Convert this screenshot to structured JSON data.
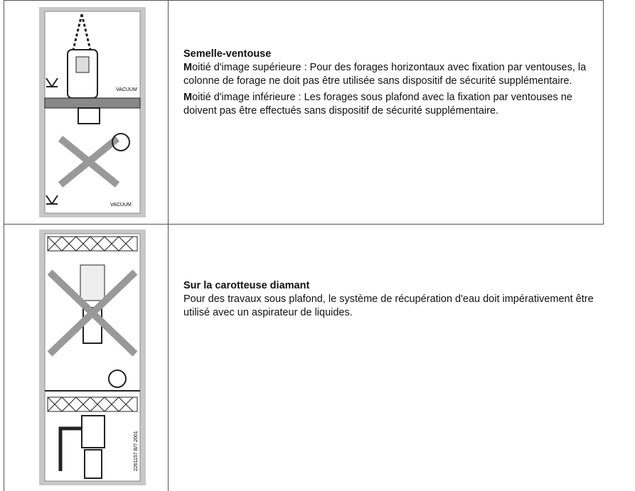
{
  "table": {
    "rows": [
      {
        "pictogram_labels": [
          "VACUUM",
          "VACUUM"
        ],
        "heading": "Semelle-ventouse",
        "paragraphs": [
          {
            "lead": "M",
            "text": "oitié d'image supérieure : Pour des forages horizontaux avec fixation par ventouses, la colonne de forage ne doit pas être utilisée sans dispositif de sécurité supplémentaire."
          },
          {
            "lead": "M",
            "text": "oitié d'image inférieure : Les forages sous plafond avec la fixation par ventouses ne doivent pas être effectués sans dispositif de sécurité supplémentaire."
          }
        ]
      },
      {
        "pictogram_labels": [
          "2261157 B/7.2001"
        ],
        "heading": "Sur la carotteuse diamant",
        "paragraphs": [
          {
            "text": "Pour des travaux sous plafond, le système de récupération d'eau doit impérativement être utilisé avec un aspirateur de liquides."
          }
        ]
      }
    ]
  }
}
